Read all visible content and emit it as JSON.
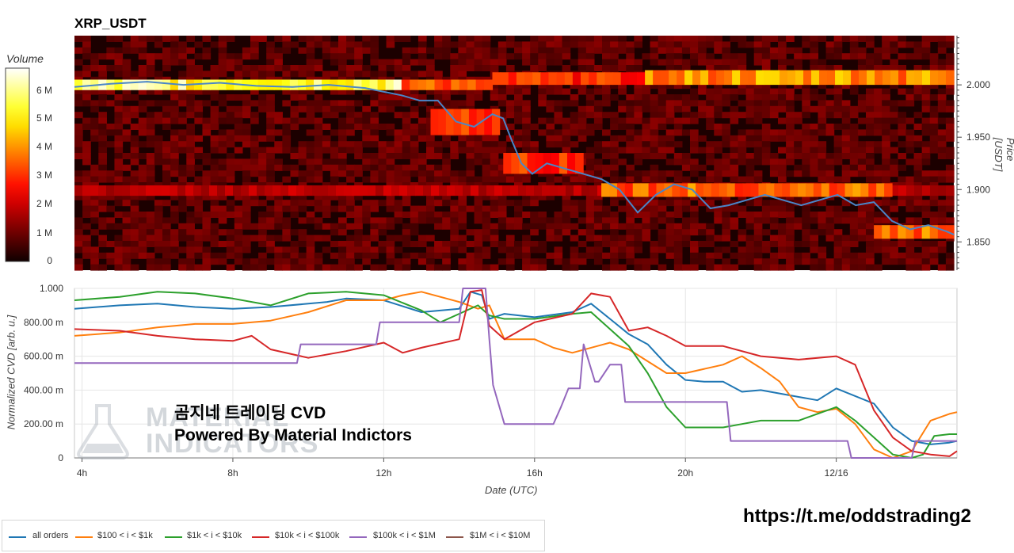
{
  "title": "XRP_USDT",
  "colorbar": {
    "title": "Volume",
    "ticks": [
      "6 M",
      "5 M",
      "4 M",
      "3 M",
      "2 M",
      "1 M",
      "0"
    ]
  },
  "watermark": {
    "line1": "곰지네 트레이딩 CVD",
    "line2": "Powered By Material Indictors",
    "logo_line1": "MATERIAL",
    "logo_line2": "INDICATORS"
  },
  "url": "https://t.me/oddstrading2",
  "chart_data": [
    {
      "type": "heatmap",
      "title": "XRP_USDT",
      "ylabel": "Price [USDT]",
      "ylim": [
        1.823,
        2.047
      ],
      "yticks": [
        "2.000",
        "1.950",
        "1.900",
        "1.850"
      ],
      "colorbar_label": "Volume",
      "colorbar_range": [
        0,
        6800000
      ],
      "colorscale": "hot",
      "x_hours": [
        3,
        27.2
      ],
      "liquidity_bands": [
        {
          "price_from": 1.995,
          "price_to": 2.005,
          "hour_from": 3.0,
          "hour_to": 12.0,
          "intensity": 0.85
        },
        {
          "price_from": 1.995,
          "price_to": 2.005,
          "hour_from": 12.0,
          "hour_to": 14.5,
          "intensity": 0.55
        },
        {
          "price_from": 2.0,
          "price_to": 2.012,
          "hour_from": 14.5,
          "hour_to": 18.7,
          "intensity": 0.45
        },
        {
          "price_from": 2.0,
          "price_to": 2.014,
          "hour_from": 18.7,
          "hour_to": 27.2,
          "intensity": 0.62
        },
        {
          "price_from": 1.952,
          "price_to": 1.977,
          "hour_from": 12.8,
          "hour_to": 14.7,
          "intensity": 0.5
        },
        {
          "price_from": 1.915,
          "price_to": 1.935,
          "hour_from": 14.8,
          "hour_to": 17.0,
          "intensity": 0.45
        },
        {
          "price_from": 1.894,
          "price_to": 1.904,
          "hour_from": 3.0,
          "hour_to": 27.2,
          "intensity": 0.28
        },
        {
          "price_from": 1.893,
          "price_to": 1.906,
          "hour_from": 17.5,
          "hour_to": 25.5,
          "intensity": 0.55
        },
        {
          "price_from": 1.853,
          "price_to": 1.866,
          "hour_from": 25.0,
          "hour_to": 27.2,
          "intensity": 0.55
        }
      ],
      "price": {
        "hours": [
          3.0,
          4.0,
          5.0,
          6.0,
          7.0,
          8.0,
          9.0,
          10.0,
          11.0,
          12.0,
          12.5,
          13.0,
          13.5,
          14.0,
          14.5,
          14.8,
          15.0,
          15.3,
          15.6,
          16.0,
          16.5,
          17.0,
          17.5,
          18.0,
          18.5,
          19.0,
          19.5,
          20.0,
          20.5,
          21.0,
          22.0,
          23.0,
          24.0,
          24.5,
          25.0,
          25.5,
          26.0,
          26.5,
          27.0,
          27.2
        ],
        "values": [
          1.998,
          2.001,
          2.003,
          2.0,
          2.002,
          1.999,
          1.998,
          2.0,
          1.997,
          1.99,
          1.985,
          1.985,
          1.965,
          1.96,
          1.972,
          1.968,
          1.95,
          1.925,
          1.915,
          1.925,
          1.92,
          1.915,
          1.91,
          1.9,
          1.878,
          1.895,
          1.905,
          1.9,
          1.882,
          1.885,
          1.895,
          1.885,
          1.895,
          1.885,
          1.888,
          1.87,
          1.862,
          1.866,
          1.86,
          1.857
        ]
      }
    },
    {
      "type": "line",
      "xlabel": "Date (UTC)",
      "ylabel": "Normalized CVD [arb. u.]",
      "x_ticks": [
        "4h",
        "8h",
        "12h",
        "16h",
        "20h",
        "12/16"
      ],
      "y_ticks": [
        "1.000",
        "800.00 m",
        "600.00 m",
        "400.00 m",
        "200.00 m",
        "0"
      ],
      "ylim": [
        0,
        1
      ],
      "x_range_hours": [
        3.8,
        27.2
      ],
      "series": [
        {
          "name": "all orders",
          "color": "#1f77b4",
          "x": [
            3.8,
            5.0,
            6.0,
            7.0,
            8.0,
            9.0,
            10.0,
            10.5,
            11.0,
            12.0,
            13.0,
            14.0,
            14.3,
            14.6,
            14.8,
            15.2,
            16.0,
            17.0,
            17.5,
            18.0,
            18.5,
            19.0,
            19.5,
            20.0,
            20.5,
            21.0,
            21.5,
            22.0,
            23.0,
            23.5,
            24.0,
            25.0,
            25.5,
            26.0,
            26.5,
            27.0,
            27.2
          ],
          "values": [
            0.88,
            0.9,
            0.91,
            0.89,
            0.88,
            0.89,
            0.91,
            0.92,
            0.94,
            0.93,
            0.86,
            0.88,
            0.98,
            0.96,
            0.82,
            0.85,
            0.83,
            0.86,
            0.91,
            0.82,
            0.73,
            0.67,
            0.55,
            0.46,
            0.45,
            0.45,
            0.39,
            0.4,
            0.36,
            0.34,
            0.41,
            0.32,
            0.18,
            0.1,
            0.08,
            0.09,
            0.1
          ]
        },
        {
          "name": "$100 < i < $1k",
          "color": "#ff7f0e",
          "x": [
            3.8,
            5.0,
            6.0,
            7.0,
            8.0,
            9.0,
            10.0,
            11.0,
            12.0,
            12.5,
            13.0,
            14.0,
            14.5,
            14.8,
            15.2,
            16.0,
            16.5,
            17.0,
            18.0,
            18.5,
            19.0,
            19.5,
            20.0,
            21.0,
            21.5,
            22.0,
            22.5,
            23.0,
            23.5,
            24.0,
            24.5,
            25.0,
            25.5,
            26.0,
            26.5,
            27.0,
            27.2
          ],
          "values": [
            0.72,
            0.74,
            0.77,
            0.79,
            0.79,
            0.81,
            0.86,
            0.93,
            0.93,
            0.96,
            0.98,
            0.92,
            0.88,
            0.9,
            0.7,
            0.7,
            0.65,
            0.62,
            0.68,
            0.64,
            0.57,
            0.5,
            0.5,
            0.55,
            0.6,
            0.53,
            0.45,
            0.3,
            0.27,
            0.29,
            0.2,
            0.05,
            0.0,
            0.04,
            0.22,
            0.26,
            0.27
          ]
        },
        {
          "name": "$1k < i < $10k",
          "color": "#2ca02c",
          "x": [
            3.8,
            5.0,
            6.0,
            7.0,
            8.0,
            9.0,
            10.0,
            11.0,
            12.0,
            13.0,
            13.5,
            14.0,
            14.5,
            14.8,
            15.2,
            16.0,
            17.0,
            17.5,
            18.0,
            18.5,
            19.0,
            19.5,
            20.0,
            21.0,
            21.5,
            22.0,
            23.0,
            24.0,
            24.5,
            25.0,
            25.5,
            26.0,
            26.3,
            26.6,
            27.0,
            27.2
          ],
          "values": [
            0.93,
            0.95,
            0.98,
            0.97,
            0.94,
            0.9,
            0.97,
            0.98,
            0.96,
            0.87,
            0.8,
            0.85,
            0.9,
            0.84,
            0.82,
            0.82,
            0.85,
            0.86,
            0.76,
            0.66,
            0.5,
            0.3,
            0.18,
            0.18,
            0.2,
            0.22,
            0.22,
            0.3,
            0.22,
            0.12,
            0.02,
            0.0,
            0.02,
            0.13,
            0.14,
            0.14
          ]
        },
        {
          "name": "$10k < i < $100k",
          "color": "#d62728",
          "x": [
            3.8,
            5.0,
            6.0,
            7.0,
            8.0,
            8.5,
            9.0,
            10.0,
            11.0,
            12.0,
            12.5,
            13.0,
            14.0,
            14.3,
            14.6,
            14.8,
            15.2,
            16.0,
            17.0,
            17.5,
            18.0,
            18.5,
            19.0,
            19.5,
            20.0,
            21.0,
            22.0,
            23.0,
            24.0,
            24.5,
            25.0,
            25.5,
            26.0,
            26.5,
            27.0,
            27.2
          ],
          "values": [
            0.76,
            0.75,
            0.72,
            0.7,
            0.69,
            0.72,
            0.64,
            0.59,
            0.63,
            0.68,
            0.62,
            0.65,
            0.7,
            0.98,
            0.99,
            0.78,
            0.7,
            0.8,
            0.85,
            0.97,
            0.95,
            0.75,
            0.77,
            0.72,
            0.66,
            0.66,
            0.6,
            0.58,
            0.6,
            0.55,
            0.28,
            0.12,
            0.04,
            0.02,
            0.01,
            0.04
          ]
        },
        {
          "name": "$100k < i < $1M",
          "color": "#9467bd",
          "x": [
            3.8,
            9.7,
            9.8,
            11.8,
            11.9,
            14.0,
            14.1,
            14.7,
            14.8,
            14.9,
            15.2,
            15.3,
            16.5,
            16.7,
            16.9,
            17.2,
            17.3,
            17.6,
            17.7,
            18.0,
            18.3,
            18.4,
            21.1,
            21.2,
            24.3,
            24.4,
            26.0,
            26.1,
            27.2
          ],
          "values": [
            0.56,
            0.56,
            0.67,
            0.67,
            0.8,
            0.8,
            1.0,
            1.0,
            0.7,
            0.43,
            0.2,
            0.2,
            0.2,
            0.3,
            0.41,
            0.41,
            0.67,
            0.45,
            0.45,
            0.55,
            0.55,
            0.33,
            0.33,
            0.1,
            0.1,
            0.0,
            0.0,
            0.1,
            0.1
          ]
        },
        {
          "name": "$1M < i < $10M",
          "color": "#8c564b",
          "x": [],
          "values": []
        }
      ]
    }
  ]
}
